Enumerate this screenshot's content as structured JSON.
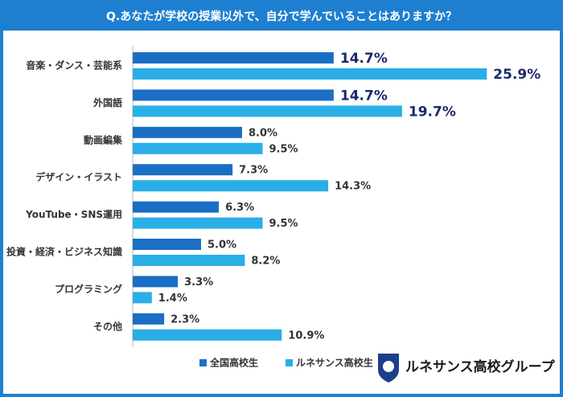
{
  "chart_data": {
    "type": "hbar",
    "title": "Q.あなたが学校の授業以外で、自分で学んでいることはありますか？",
    "categories": [
      "音楽・ダンス・芸能系",
      "外国語",
      "動画編集",
      "デザイン・イラスト",
      "YouTube・SNS運用",
      "投資・経済・ビジネス知識",
      "プログラミング",
      "その他"
    ],
    "series": [
      {
        "name": "全国高校生",
        "color": "#1a6fc4",
        "values": [
          14.7,
          14.7,
          8.0,
          7.3,
          6.3,
          5.0,
          3.3,
          2.3
        ],
        "value_labels": [
          "14.7%",
          "14.7%",
          "8.0%",
          "7.3%",
          "6.3%",
          "5.0%",
          "3.3%",
          "2.3%"
        ]
      },
      {
        "name": "ルネサンス高校生",
        "color": "#2aaee6",
        "values": [
          25.9,
          19.7,
          9.5,
          14.3,
          9.5,
          8.2,
          1.4,
          10.9
        ],
        "value_labels": [
          "25.9%",
          "19.7%",
          "9.5%",
          "14.3%",
          "9.5%",
          "8.2%",
          "1.4%",
          "10.9%"
        ]
      }
    ],
    "xlim": [
      0,
      30
    ],
    "logo_text": "ルネサンス高校グループ"
  }
}
